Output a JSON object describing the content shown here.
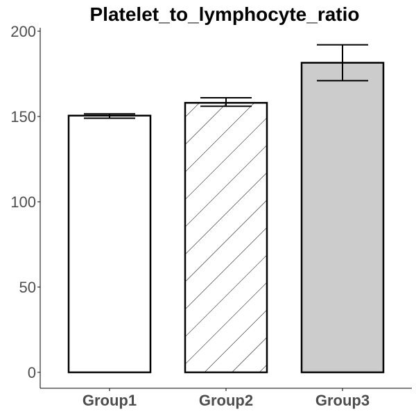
{
  "chart_data": {
    "type": "bar",
    "title": "Platelet_to_lymphocyte_ratio",
    "xlabel": "",
    "ylabel": "",
    "categories": [
      "Group1",
      "Group2",
      "Group3"
    ],
    "values": [
      150.5,
      158,
      181.5
    ],
    "errors": [
      [
        149,
        151.5
      ],
      [
        156,
        161
      ],
      [
        171,
        192
      ]
    ],
    "fills": [
      "plain",
      "hatched",
      "gray"
    ],
    "ylim": [
      -10,
      205
    ],
    "yticks": [
      0,
      50,
      100,
      150,
      200
    ],
    "grid": false,
    "colors": {
      "plain": "#ffffff",
      "hatched": "#ffffff",
      "gray": "#cccccc",
      "outline": "#000000",
      "tick_text": "#4d4d4d"
    }
  }
}
